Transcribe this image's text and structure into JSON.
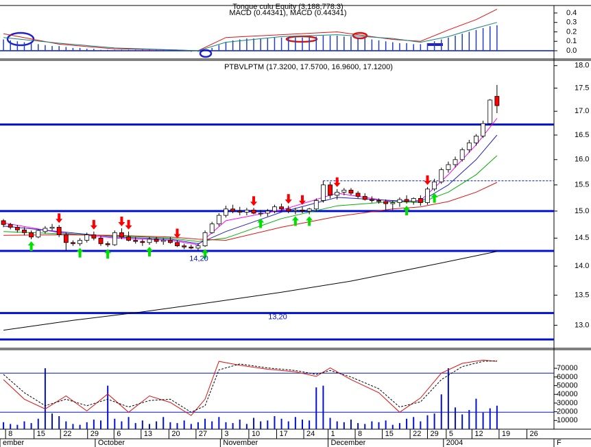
{
  "chart_data": [
    {
      "type": "macd",
      "title": "Tongue culu Equity (3,188,778.3)",
      "subtitle": "MACD (0.44341), MACD (0.44341)",
      "xlim": [
        -0.5,
        79.2
      ],
      "ylim": [
        -0.058,
        0.465
      ],
      "yticks": [
        {
          "value": 0.0,
          "label": "0.0"
        },
        0.1,
        0.2,
        0.3,
        0.4
      ],
      "histogram": {
        "color": "#1f3fbf",
        "values": [
          0.12,
          0.11,
          0.1,
          0.09,
          0.08,
          0.07,
          0.06,
          0.05,
          0.05,
          0.04,
          0.03,
          0.03,
          0.02,
          0.02,
          0.01,
          0.01,
          0.01,
          0.01,
          0.01,
          0.01,
          0.01,
          0.01,
          0.01,
          0.01,
          0.01,
          0.0,
          0.0,
          -0.01,
          -0.01,
          0.01,
          0.03,
          0.06,
          0.09,
          0.11,
          0.12,
          0.13,
          0.13,
          0.13,
          0.13,
          0.14,
          0.14,
          0.14,
          0.14,
          0.14,
          0.14,
          0.15,
          0.16,
          0.16,
          0.16,
          0.15,
          0.15,
          0.14,
          0.13,
          0.12,
          0.11,
          0.1,
          0.09,
          0.08,
          0.08,
          0.07,
          0.07,
          0.08,
          0.1,
          0.12,
          0.14,
          0.16,
          0.18,
          0.2,
          0.22,
          0.24,
          0.26,
          0.27
        ]
      },
      "series": [
        {
          "color": "#e01010",
          "x": [
            0,
            8,
            16,
            24,
            28,
            32,
            40,
            48,
            56,
            60,
            64,
            68,
            71
          ],
          "values": [
            0.18,
            0.07,
            0.02,
            0.01,
            0.0,
            0.14,
            0.17,
            0.2,
            0.12,
            0.1,
            0.22,
            0.33,
            0.44
          ]
        },
        {
          "color": "#108080",
          "x": [
            0,
            8,
            16,
            24,
            28,
            32,
            40,
            48,
            56,
            60,
            64,
            68,
            71
          ],
          "values": [
            0.14,
            0.08,
            0.03,
            0.01,
            0.0,
            0.09,
            0.15,
            0.17,
            0.13,
            0.09,
            0.15,
            0.24,
            0.3
          ]
        }
      ]
    },
    {
      "type": "candlestick",
      "title": "PTBVLPTM (17.3200, 17.5700, 16.9600, 17.1200)",
      "log_scale": true,
      "xlim": [
        -0.5,
        79.2
      ],
      "ylim": [
        12.63,
        18.12
      ],
      "yticks": [
        {
          "value": 13.0,
          "label": "13.0"
        },
        13.5,
        {
          "value": 14.0,
          "label": "14.0"
        },
        14.5,
        {
          "value": 15.0,
          "label": "15.0"
        },
        15.5,
        {
          "value": 16.0,
          "label": "16.0"
        },
        16.5,
        {
          "value": 17.0,
          "label": "17.0"
        },
        17.5,
        {
          "value": 18.0,
          "label": "18.0"
        }
      ],
      "up_color": "#ffffff",
      "down_color": "#ff0000",
      "ohlc": [
        [
          14.82,
          14.85,
          14.7,
          14.75
        ],
        [
          14.75,
          14.78,
          14.66,
          14.7
        ],
        [
          14.7,
          14.74,
          14.6,
          14.65
        ],
        [
          14.65,
          14.7,
          14.55,
          14.6
        ],
        [
          14.6,
          14.64,
          14.48,
          14.52
        ],
        [
          14.52,
          14.66,
          14.5,
          14.64
        ],
        [
          14.62,
          14.72,
          14.58,
          14.68
        ],
        [
          14.68,
          14.76,
          14.64,
          14.7
        ],
        [
          14.7,
          14.74,
          14.52,
          14.56
        ],
        [
          14.56,
          14.6,
          14.28,
          14.42
        ],
        [
          14.42,
          14.46,
          14.36,
          14.4
        ],
        [
          14.4,
          14.5,
          14.36,
          14.46
        ],
        [
          14.46,
          14.6,
          14.42,
          14.56
        ],
        [
          14.56,
          14.62,
          14.46,
          14.5
        ],
        [
          14.5,
          14.54,
          14.36,
          14.4
        ],
        [
          14.4,
          14.44,
          14.34,
          14.38
        ],
        [
          14.38,
          14.64,
          14.36,
          14.6
        ],
        [
          14.6,
          14.68,
          14.48,
          14.52
        ],
        [
          14.52,
          14.62,
          14.44,
          14.46
        ],
        [
          14.46,
          14.52,
          14.4,
          14.44
        ],
        [
          14.44,
          14.48,
          14.36,
          14.42
        ],
        [
          14.42,
          14.52,
          14.38,
          14.48
        ],
        [
          14.48,
          14.52,
          14.4,
          14.44
        ],
        [
          14.44,
          14.5,
          14.38,
          14.46
        ],
        [
          14.46,
          14.52,
          14.4,
          14.42
        ],
        [
          14.42,
          14.46,
          14.34,
          14.36
        ],
        [
          14.36,
          14.4,
          14.3,
          14.34
        ],
        [
          14.34,
          14.38,
          14.3,
          14.32
        ],
        [
          14.32,
          14.4,
          14.28,
          14.36
        ],
        [
          14.36,
          14.64,
          14.34,
          14.6
        ],
        [
          14.6,
          14.8,
          14.58,
          14.76
        ],
        [
          14.76,
          14.96,
          14.72,
          14.92
        ],
        [
          14.92,
          15.1,
          14.88,
          15.04
        ],
        [
          15.04,
          15.12,
          14.96,
          15.0
        ],
        [
          15.0,
          15.08,
          14.92,
          14.98
        ],
        [
          14.98,
          15.06,
          14.92,
          15.02
        ],
        [
          15.02,
          15.06,
          14.94,
          14.96
        ],
        [
          14.96,
          15.02,
          14.9,
          14.96
        ],
        [
          14.96,
          15.04,
          14.9,
          15.0
        ],
        [
          15.0,
          15.12,
          14.96,
          15.08
        ],
        [
          15.08,
          15.14,
          15.0,
          15.04
        ],
        [
          15.04,
          15.1,
          14.96,
          15.0
        ],
        [
          15.0,
          15.06,
          14.94,
          15.02
        ],
        [
          15.02,
          15.08,
          14.96,
          15.0
        ],
        [
          15.0,
          15.06,
          14.94,
          15.04
        ],
        [
          15.04,
          15.24,
          15.0,
          15.2
        ],
        [
          15.2,
          15.58,
          15.16,
          15.5
        ],
        [
          15.5,
          15.56,
          15.24,
          15.3
        ],
        [
          15.3,
          15.42,
          15.22,
          15.36
        ],
        [
          15.36,
          15.44,
          15.3,
          15.4
        ],
        [
          15.4,
          15.44,
          15.3,
          15.34
        ],
        [
          15.34,
          15.38,
          15.24,
          15.28
        ],
        [
          15.28,
          15.34,
          15.2,
          15.22
        ],
        [
          15.22,
          15.28,
          15.16,
          15.2
        ],
        [
          15.2,
          15.24,
          15.14,
          15.18
        ],
        [
          15.18,
          15.22,
          15.02,
          15.14
        ],
        [
          15.14,
          15.2,
          15.02,
          15.16
        ],
        [
          15.16,
          15.26,
          15.08,
          15.22
        ],
        [
          15.22,
          15.3,
          15.14,
          15.18
        ],
        [
          15.18,
          15.26,
          15.12,
          15.24
        ],
        [
          15.24,
          15.3,
          15.1,
          15.16
        ],
        [
          15.16,
          15.46,
          15.12,
          15.42
        ],
        [
          15.42,
          15.62,
          15.38,
          15.56
        ],
        [
          15.56,
          15.84,
          15.52,
          15.8
        ],
        [
          15.8,
          15.96,
          15.74,
          15.9
        ],
        [
          15.9,
          16.06,
          15.84,
          16.0
        ],
        [
          16.0,
          16.24,
          15.96,
          16.2
        ],
        [
          16.2,
          16.4,
          16.14,
          16.34
        ],
        [
          16.34,
          16.52,
          16.28,
          16.48
        ],
        [
          16.48,
          16.8,
          16.44,
          16.74
        ],
        [
          16.74,
          17.26,
          16.7,
          17.24
        ],
        [
          17.32,
          17.57,
          16.96,
          17.12
        ]
      ],
      "series": [
        {
          "color": "#ff00ff",
          "x": [
            0,
            8,
            16,
            24,
            28,
            32,
            40,
            48,
            56,
            60,
            64,
            68,
            71
          ],
          "values": [
            14.78,
            14.6,
            14.5,
            14.46,
            14.38,
            14.82,
            15.02,
            15.34,
            15.18,
            15.2,
            15.7,
            16.3,
            16.85
          ]
        },
        {
          "color": "#2020c0",
          "x": [
            0,
            8,
            16,
            24,
            28,
            32,
            40,
            48,
            56,
            60,
            64,
            68,
            71
          ],
          "values": [
            14.72,
            14.62,
            14.52,
            14.48,
            14.4,
            14.62,
            14.98,
            15.26,
            15.2,
            15.18,
            15.5,
            16.0,
            16.5
          ]
        },
        {
          "color": "#00b000",
          "x": [
            0,
            8,
            16,
            24,
            28,
            32,
            40,
            48,
            56,
            60,
            64,
            68,
            71
          ],
          "values": [
            14.62,
            14.58,
            14.54,
            14.5,
            14.44,
            14.5,
            14.86,
            15.1,
            15.18,
            15.16,
            15.36,
            15.7,
            16.08
          ]
        },
        {
          "color": "#e01010",
          "x": [
            0,
            8,
            16,
            24,
            28,
            32,
            40,
            48,
            56,
            60,
            64,
            68,
            71
          ],
          "values": [
            14.55,
            14.56,
            14.55,
            14.52,
            14.48,
            14.46,
            14.7,
            14.9,
            15.04,
            15.08,
            15.18,
            15.36,
            15.55
          ]
        },
        {
          "color": "#000000",
          "x": [
            0,
            10,
            20,
            30,
            40,
            50,
            60,
            71
          ],
          "values": [
            12.92,
            13.08,
            13.22,
            13.38,
            13.55,
            13.74,
            13.98,
            14.26
          ]
        }
      ],
      "hlines": {
        "color": "#0010d0",
        "values": [
          16.72,
          15.0,
          14.27,
          13.2,
          12.77
        ]
      },
      "dashed_line": {
        "color": "#0010d0",
        "value": 15.58,
        "from": 46
      },
      "sell_signals": {
        "color": "#ff0000",
        "x": [
          8,
          13,
          17,
          18,
          25,
          36,
          41,
          43,
          48,
          61
        ]
      },
      "buy_signals": {
        "color": "#00e000",
        "x": [
          4,
          11,
          15,
          21,
          29,
          37,
          42,
          44,
          58,
          62
        ]
      },
      "annotations": [
        {
          "value": 14.2,
          "label": "14,20"
        },
        {
          "value": 13.2,
          "label": "13,20"
        }
      ]
    },
    {
      "type": "volume",
      "xlim": [
        -0.5,
        79.2
      ],
      "ylim": [
        0,
        91400
      ],
      "yticks": [
        10000,
        20000,
        30000,
        40000,
        50000,
        60000,
        70000
      ],
      "volume": {
        "color": "#0010d0",
        "values": [
          8000,
          6000,
          5000,
          9000,
          7000,
          12000,
          70000,
          18000,
          15000,
          9000,
          6000,
          5000,
          8000,
          11000,
          10000,
          50000,
          12000,
          9000,
          14000,
          7000,
          10000,
          6000,
          9000,
          14000,
          8000,
          7000,
          10000,
          6000,
          8000,
          12000,
          9000,
          14000,
          8000,
          7000,
          11000,
          6000,
          13000,
          9000,
          10000,
          15000,
          12000,
          9000,
          14000,
          11000,
          10000,
          48000,
          50000,
          13000,
          9000,
          8000,
          11000,
          7000,
          6000,
          9000,
          8000,
          10000,
          5000,
          7000,
          12000,
          14000,
          9000,
          16000,
          18000,
          40000,
          70000,
          25000,
          17000,
          22000,
          35000,
          19000,
          24000,
          27000
        ]
      },
      "stochastic": {
        "ylim": [
          -6,
          116
        ],
        "levels": [
          80,
          20
        ],
        "level_color": "#0010d0",
        "series": [
          {
            "color": "#e01010",
            "dashed": false,
            "x": [
              0,
              3,
              6,
              9,
              12,
              15,
              18,
              21,
              24,
              27,
              29,
              31,
              34,
              38,
              42,
              45,
              47,
              50,
              54,
              57,
              60,
              63,
              66,
              69,
              71
            ],
            "values": [
              70,
              40,
              25,
              45,
              22,
              48,
              20,
              45,
              35,
              15,
              40,
              98,
              92,
              86,
              82,
              75,
              88,
              70,
              50,
              20,
              42,
              80,
              95,
              100,
              98
            ]
          },
          {
            "color": "#000000",
            "dashed": true,
            "x": [
              0,
              3,
              6,
              9,
              12,
              15,
              18,
              21,
              24,
              27,
              29,
              31,
              34,
              38,
              42,
              45,
              47,
              50,
              54,
              57,
              60,
              63,
              66,
              69,
              71
            ],
            "values": [
              78,
              50,
              30,
              40,
              30,
              40,
              28,
              38,
              40,
              20,
              30,
              85,
              94,
              88,
              84,
              78,
              84,
              74,
              56,
              28,
              36,
              70,
              90,
              98,
              99
            ]
          }
        ]
      },
      "xticks": [
        {
          "value": 0.3,
          "label": "8"
        },
        {
          "value": 4.4,
          "label": "15"
        },
        {
          "value": 8.2,
          "label": "22"
        },
        {
          "value": 12.1,
          "label": "29"
        },
        {
          "value": 15.9,
          "label": "6"
        },
        {
          "value": 19.8,
          "label": "13"
        },
        {
          "value": 23.8,
          "label": "20"
        },
        {
          "value": 27.7,
          "label": "27"
        },
        {
          "value": 31.4,
          "label": "3"
        },
        {
          "value": 35.3,
          "label": "10"
        },
        {
          "value": 39.3,
          "label": "17"
        },
        {
          "value": 43.2,
          "label": "24"
        },
        {
          "value": 46.7,
          "label": "1"
        },
        {
          "value": 50.6,
          "label": "8"
        },
        {
          "value": 54.5,
          "label": "15"
        },
        {
          "value": 58.5,
          "label": "22"
        },
        {
          "value": 61.0,
          "label": "29"
        },
        {
          "value": 63.7,
          "label": "5"
        },
        {
          "value": 67.4,
          "label": "12"
        },
        {
          "value": 71.3,
          "label": "19"
        },
        {
          "value": 75.3,
          "label": "26"
        }
      ],
      "month_labels": [
        {
          "value": -0.5,
          "label": "ember"
        },
        {
          "value": 13.2,
          "label": "October"
        },
        {
          "value": 31.2,
          "label": "November"
        },
        {
          "value": 46.7,
          "label": "December"
        },
        {
          "value": 63.3,
          "label": "2004"
        },
        {
          "value": 79.2,
          "label": "F"
        }
      ]
    }
  ]
}
